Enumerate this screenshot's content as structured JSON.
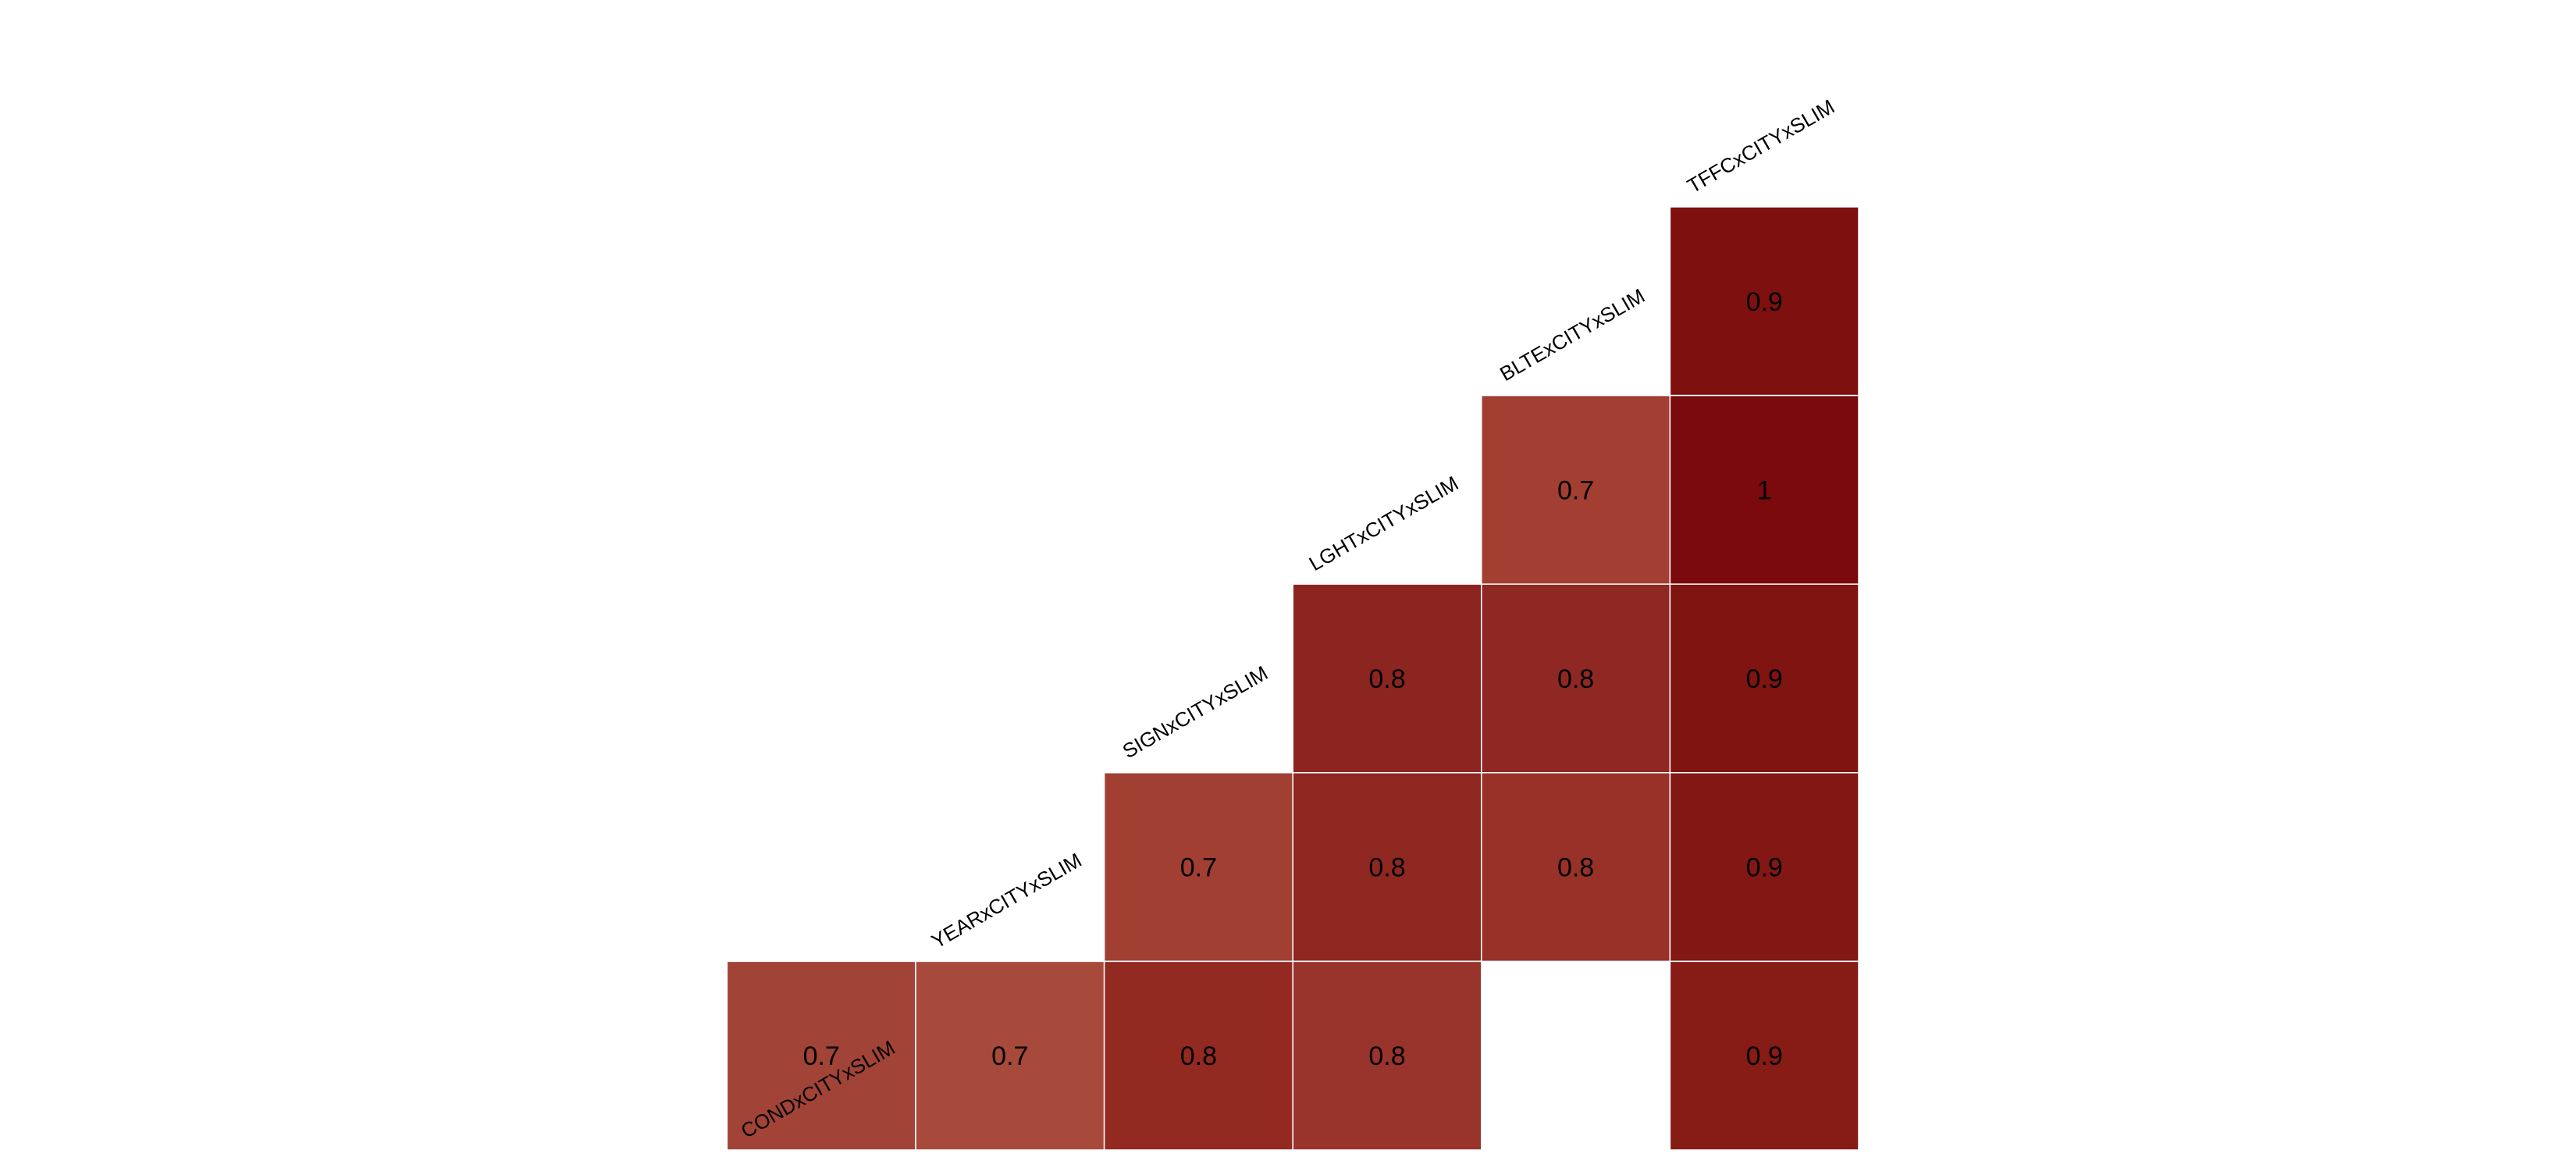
{
  "chart_data": {
    "type": "heatmap",
    "title": "",
    "variables": [
      "CONDxCITYxSLIM",
      "YEARxCITYxSLIM",
      "SIGNxCITYxSLIM",
      "LGHTxCITYxSLIM",
      "BLTExCITYxSLIM",
      "TFFCxCITYxSLIM"
    ],
    "cells": [
      {
        "row": "TFFCxCITYxSLIM",
        "col": "TFFCxCITYxSLIM",
        "value": 0.9,
        "label": "0.9",
        "color": "#7e1010"
      },
      {
        "row": "BLTExCITYxSLIM",
        "col": "BLTExCITYxSLIM",
        "value": 0.7,
        "label": "0.7",
        "color": "#a33e32"
      },
      {
        "row": "BLTExCITYxSLIM",
        "col": "TFFCxCITYxSLIM",
        "value": 1,
        "label": "1",
        "color": "#7b0a0c"
      },
      {
        "row": "LGHTxCITYxSLIM",
        "col": "LGHTxCITYxSLIM",
        "value": 0.8,
        "label": "0.8",
        "color": "#8c2520"
      },
      {
        "row": "LGHTxCITYxSLIM",
        "col": "BLTExCITYxSLIM",
        "value": 0.8,
        "label": "0.8",
        "color": "#8f2823"
      },
      {
        "row": "LGHTxCITYxSLIM",
        "col": "TFFCxCITYxSLIM",
        "value": 0.9,
        "label": "0.9",
        "color": "#7f1411"
      },
      {
        "row": "SIGNxCITYxSLIM",
        "col": "SIGNxCITYxSLIM",
        "value": 0.7,
        "label": "0.7",
        "color": "#a13f33"
      },
      {
        "row": "SIGNxCITYxSLIM",
        "col": "LGHTxCITYxSLIM",
        "value": 0.8,
        "label": "0.8",
        "color": "#8f2721"
      },
      {
        "row": "SIGNxCITYxSLIM",
        "col": "BLTExCITYxSLIM",
        "value": 0.8,
        "label": "0.8",
        "color": "#983229"
      },
      {
        "row": "SIGNxCITYxSLIM",
        "col": "TFFCxCITYxSLIM",
        "value": 0.9,
        "label": "0.9",
        "color": "#821713"
      },
      {
        "row": "YEARxCITYxSLIM",
        "col": "CONDxCITYxSLIM",
        "value": 0.7,
        "label": "0.7",
        "color": "#a14336"
      },
      {
        "row": "YEARxCITYxSLIM",
        "col": "YEARxCITYxSLIM",
        "value": 0.7,
        "label": "0.7",
        "color": "#a84a3b"
      },
      {
        "row": "YEARxCITYxSLIM",
        "col": "SIGNxCITYxSLIM",
        "value": 0.8,
        "label": "0.8",
        "color": "#922a22"
      },
      {
        "row": "YEARxCITYxSLIM",
        "col": "LGHTxCITYxSLIM",
        "value": 0.8,
        "label": "0.8",
        "color": "#98342b"
      },
      {
        "row": "YEARxCITYxSLIM",
        "col": "TFFCxCITYxSLIM",
        "value": 0.9,
        "label": "0.9",
        "color": "#871b16"
      }
    ]
  }
}
